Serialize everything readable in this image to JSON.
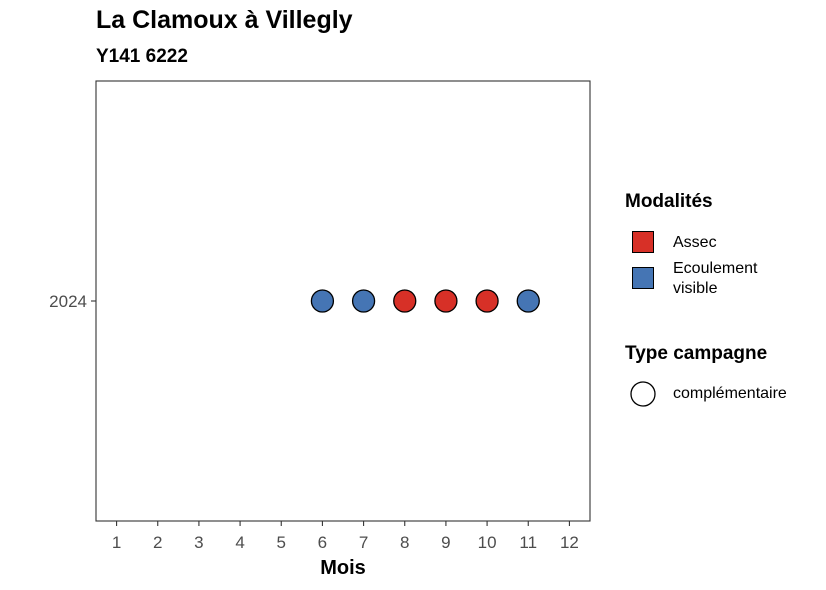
{
  "chart_data": {
    "type": "scatter",
    "title": "La Clamoux à Villegly",
    "subtitle": "Y141 6222",
    "xlabel": "Mois",
    "ylabel": "",
    "x_ticks": [
      1,
      2,
      3,
      4,
      5,
      6,
      7,
      8,
      9,
      10,
      11,
      12
    ],
    "xlim": [
      0.5,
      12.5
    ],
    "y_categories": [
      "2024"
    ],
    "points": [
      {
        "x": 6,
        "y": "2024",
        "modalite": "Ecoulement visible",
        "campagne": "complémentaire"
      },
      {
        "x": 7,
        "y": "2024",
        "modalite": "Ecoulement visible",
        "campagne": "complémentaire"
      },
      {
        "x": 8,
        "y": "2024",
        "modalite": "Assec",
        "campagne": "complémentaire"
      },
      {
        "x": 9,
        "y": "2024",
        "modalite": "Assec",
        "campagne": "complémentaire"
      },
      {
        "x": 10,
        "y": "2024",
        "modalite": "Assec",
        "campagne": "complémentaire"
      },
      {
        "x": 11,
        "y": "2024",
        "modalite": "Ecoulement visible",
        "campagne": "complémentaire"
      }
    ],
    "grid": false,
    "legend": {
      "placement": "right",
      "color_title": "Modalités",
      "color_items": [
        {
          "label": "Assec",
          "color": "#d73027"
        },
        {
          "label_line1": "Ecoulement",
          "label_line2": "visible",
          "color": "#4575b4"
        }
      ],
      "shape_title": "Type campagne",
      "shape_items": [
        {
          "label": "complémentaire",
          "shape": "circle-open"
        }
      ]
    }
  }
}
